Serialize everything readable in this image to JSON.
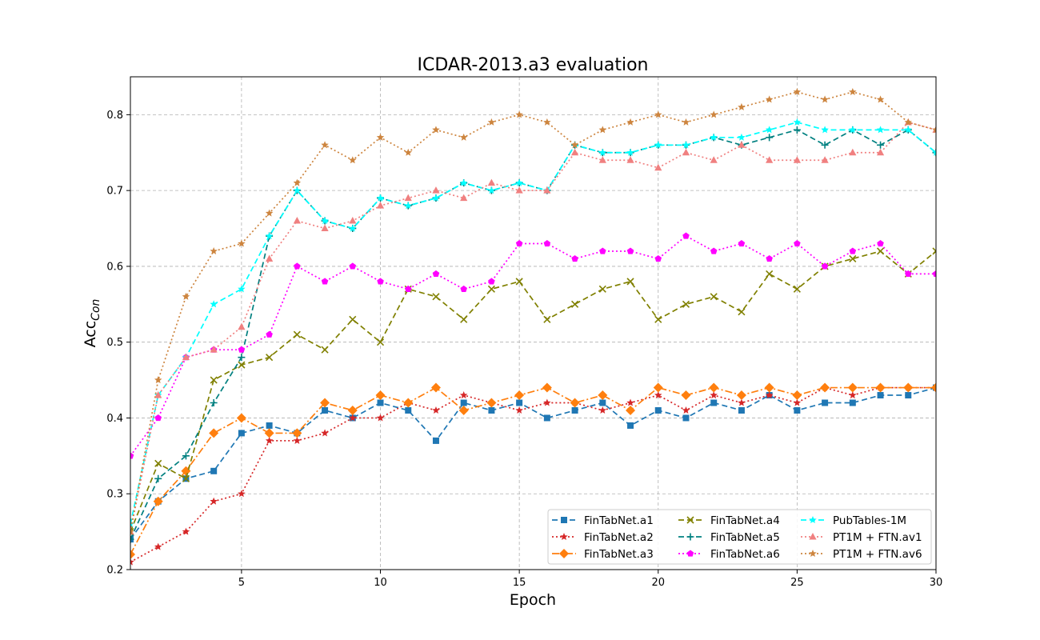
{
  "chart_data": {
    "type": "line",
    "title": "ICDAR-2013.a3 evaluation",
    "xlabel": "Epoch",
    "ylabel_main": "Acc",
    "ylabel_sub": "Con",
    "xlim": [
      1,
      30
    ],
    "ylim": [
      0.2,
      0.85
    ],
    "xticks": [
      5,
      10,
      15,
      20,
      25,
      30
    ],
    "yticks": [
      0.2,
      0.3,
      0.4,
      0.5,
      0.6,
      0.7,
      0.8
    ],
    "ytick_labels": [
      "0.2",
      "0.3",
      "0.4",
      "0.5",
      "0.6",
      "0.7",
      "0.8"
    ],
    "grid": true,
    "legend_position": "lower-right",
    "x": [
      1,
      2,
      3,
      4,
      5,
      6,
      7,
      8,
      9,
      10,
      11,
      12,
      13,
      14,
      15,
      16,
      17,
      18,
      19,
      20,
      21,
      22,
      23,
      24,
      25,
      26,
      27,
      28,
      29,
      30
    ],
    "series": [
      {
        "name": "FinTabNet.a1",
        "color": "#1f77b4",
        "dash": "dashed",
        "marker": "square",
        "values": [
          0.24,
          0.29,
          0.32,
          0.33,
          0.38,
          0.39,
          0.38,
          0.41,
          0.4,
          0.42,
          0.41,
          0.37,
          0.42,
          0.41,
          0.42,
          0.4,
          0.41,
          0.42,
          0.39,
          0.41,
          0.4,
          0.42,
          0.41,
          0.43,
          0.41,
          0.42,
          0.42,
          0.43,
          0.43,
          0.44
        ]
      },
      {
        "name": "FinTabNet.a2",
        "color": "#d62728",
        "dash": "dotted",
        "marker": "star",
        "values": [
          0.21,
          0.23,
          0.25,
          0.29,
          0.3,
          0.37,
          0.37,
          0.38,
          0.4,
          0.4,
          0.42,
          0.41,
          0.43,
          0.42,
          0.41,
          0.42,
          0.42,
          0.41,
          0.42,
          0.43,
          0.41,
          0.43,
          0.42,
          0.43,
          0.42,
          0.44,
          0.43,
          0.44,
          0.44,
          0.44
        ]
      },
      {
        "name": "FinTabNet.a3",
        "color": "#ff7f0e",
        "dash": "dashdot",
        "marker": "diamond",
        "values": [
          0.22,
          0.29,
          0.33,
          0.38,
          0.4,
          0.38,
          0.38,
          0.42,
          0.41,
          0.43,
          0.42,
          0.44,
          0.41,
          0.42,
          0.43,
          0.44,
          0.42,
          0.43,
          0.41,
          0.44,
          0.43,
          0.44,
          0.43,
          0.44,
          0.43,
          0.44,
          0.44,
          0.44,
          0.44,
          0.44
        ]
      },
      {
        "name": "FinTabNet.a4",
        "color": "#808000",
        "dash": "dashed",
        "marker": "x",
        "values": [
          0.25,
          0.34,
          0.32,
          0.45,
          0.47,
          0.48,
          0.51,
          0.49,
          0.53,
          0.5,
          0.57,
          0.56,
          0.53,
          0.57,
          0.58,
          0.53,
          0.55,
          0.57,
          0.58,
          0.53,
          0.55,
          0.56,
          0.54,
          0.59,
          0.57,
          0.6,
          0.61,
          0.62,
          0.59,
          0.62
        ]
      },
      {
        "name": "FinTabNet.a5",
        "color": "#008080",
        "dash": "dashed",
        "marker": "plus",
        "values": [
          0.24,
          0.32,
          0.35,
          0.42,
          0.48,
          0.64,
          0.7,
          0.66,
          0.65,
          0.69,
          0.68,
          0.69,
          0.71,
          0.7,
          0.71,
          0.7,
          0.76,
          0.75,
          0.75,
          0.76,
          0.76,
          0.77,
          0.76,
          0.77,
          0.78,
          0.76,
          0.78,
          0.76,
          0.78,
          0.75
        ]
      },
      {
        "name": "FinTabNet.a6",
        "color": "#ff00ff",
        "dash": "dotted",
        "marker": "pentagon",
        "values": [
          0.35,
          0.4,
          0.48,
          0.49,
          0.49,
          0.51,
          0.6,
          0.58,
          0.6,
          0.58,
          0.57,
          0.59,
          0.57,
          0.58,
          0.63,
          0.63,
          0.61,
          0.62,
          0.62,
          0.61,
          0.64,
          0.62,
          0.63,
          0.61,
          0.63,
          0.6,
          0.62,
          0.63,
          0.59,
          0.59
        ]
      },
      {
        "name": "PubTables-1M",
        "color": "#00ffff",
        "dash": "dashed",
        "marker": "star",
        "values": [
          0.26,
          0.43,
          0.48,
          0.55,
          0.57,
          0.64,
          0.7,
          0.66,
          0.65,
          0.69,
          0.68,
          0.69,
          0.71,
          0.7,
          0.71,
          0.7,
          0.76,
          0.75,
          0.75,
          0.76,
          0.76,
          0.77,
          0.77,
          0.78,
          0.79,
          0.78,
          0.78,
          0.78,
          0.78,
          0.75
        ]
      },
      {
        "name": "PT1M + FTN.av1",
        "color": "#f08080",
        "dash": "dotted",
        "marker": "triangle",
        "values": [
          0.25,
          0.43,
          0.48,
          0.49,
          0.52,
          0.61,
          0.66,
          0.65,
          0.66,
          0.68,
          0.69,
          0.7,
          0.69,
          0.71,
          0.7,
          0.7,
          0.75,
          0.74,
          0.74,
          0.73,
          0.75,
          0.74,
          0.76,
          0.74,
          0.74,
          0.74,
          0.75,
          0.75,
          0.79,
          0.78
        ]
      },
      {
        "name": "PT1M + FTN.av6",
        "color": "#cd853f",
        "dash": "dotted",
        "marker": "star",
        "values": [
          0.25,
          0.45,
          0.56,
          0.62,
          0.63,
          0.67,
          0.71,
          0.76,
          0.74,
          0.77,
          0.75,
          0.78,
          0.77,
          0.79,
          0.8,
          0.79,
          0.76,
          0.78,
          0.79,
          0.8,
          0.79,
          0.8,
          0.81,
          0.82,
          0.83,
          0.82,
          0.83,
          0.82,
          0.79,
          0.78
        ]
      }
    ]
  }
}
